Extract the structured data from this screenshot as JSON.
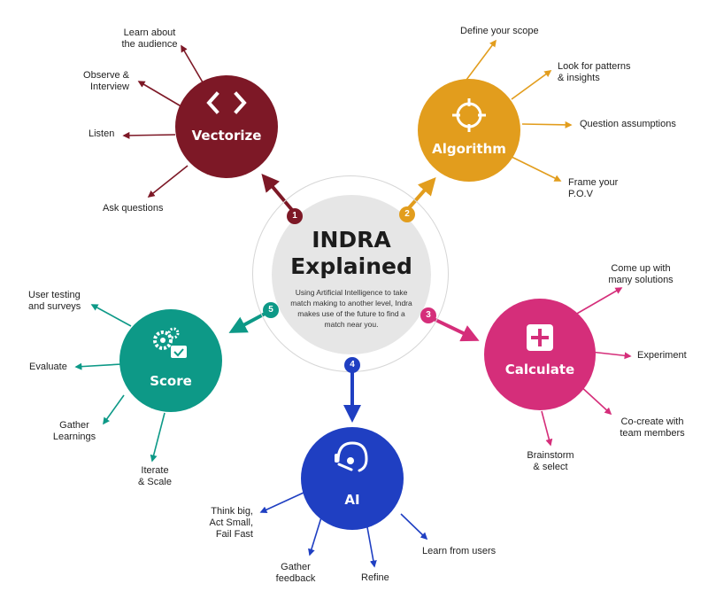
{
  "hub": {
    "title_line1": "INDRA",
    "title_line2": "Explained",
    "description": "Using Artificial Intelligence to take match making to another level, Indra makes use of the future to find a match near you."
  },
  "colors": {
    "vectorize": "#7d1826",
    "algorithm": "#e29d1d",
    "calculate": "#d52e7a",
    "ai": "#1f3fc2",
    "score": "#0d9987"
  },
  "nodes": {
    "vectorize": {
      "number": "1",
      "title": "Vectorize",
      "icon": "code-brackets-icon",
      "items": [
        "Learn about\nthe audience",
        "Observe &\nInterview",
        "Listen",
        "Ask questions"
      ]
    },
    "algorithm": {
      "number": "2",
      "title": "Algorithm",
      "icon": "crosshair-icon",
      "items": [
        "Define your scope",
        "Look for patterns\n& insights",
        "Question assumptions",
        "Frame your\nP.O.V"
      ]
    },
    "calculate": {
      "number": "3",
      "title": "Calculate",
      "icon": "plus-box-icon",
      "items": [
        "Come up with\nmany solutions",
        "Experiment",
        "Co-create with\nteam members",
        "Brainstorm\n& select"
      ]
    },
    "ai": {
      "number": "4",
      "title": "AI",
      "icon": "headset-person-icon",
      "items": [
        "Think big,\nAct Small,\nFail Fast",
        "Gather\nfeedback",
        "Refine",
        "Learn from users"
      ]
    },
    "score": {
      "number": "5",
      "title": "Score",
      "icon": "gears-check-icon",
      "items": [
        "User testing\nand surveys",
        "Evaluate",
        "Gather\nLearnings",
        "Iterate\n& Scale"
      ]
    }
  }
}
